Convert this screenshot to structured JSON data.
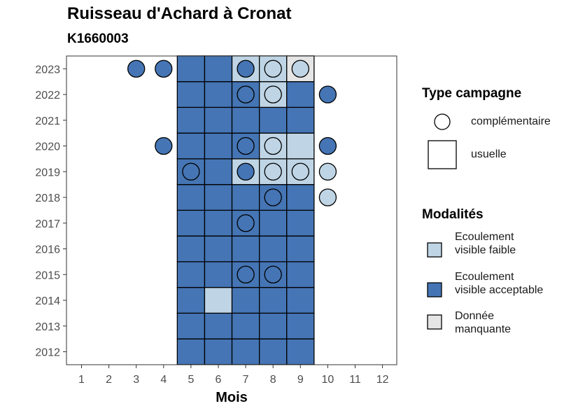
{
  "chart_data": {
    "type": "heatmap",
    "title": "Ruisseau d'Achard à Cronat",
    "subtitle": "K1660003",
    "xlabel": "Mois",
    "ylabel": "",
    "x_ticks": [
      "1",
      "2",
      "3",
      "4",
      "5",
      "6",
      "7",
      "8",
      "9",
      "10",
      "11",
      "12"
    ],
    "y_ticks": [
      "2012",
      "2013",
      "2014",
      "2015",
      "2016",
      "2017",
      "2018",
      "2019",
      "2020",
      "2021",
      "2022",
      "2023"
    ],
    "colors": {
      "faible": "#bfd5e5",
      "acceptable": "#4575b4",
      "manquante": "#e5e5e5"
    },
    "legend_type": {
      "title": "Type campagne",
      "items": [
        "complémentaire",
        "usuelle"
      ]
    },
    "legend_modalites": {
      "title": "Modalités",
      "items": [
        {
          "key": "faible",
          "label": "Ecoulement visible faible"
        },
        {
          "key": "acceptable",
          "label": "Ecoulement visible acceptable"
        },
        {
          "key": "manquante",
          "label": "Donnée manquante"
        }
      ]
    },
    "usuelle": [
      {
        "year": "2012",
        "month": 5,
        "m": "acceptable"
      },
      {
        "year": "2012",
        "month": 6,
        "m": "acceptable"
      },
      {
        "year": "2012",
        "month": 7,
        "m": "acceptable"
      },
      {
        "year": "2012",
        "month": 8,
        "m": "acceptable"
      },
      {
        "year": "2012",
        "month": 9,
        "m": "acceptable"
      },
      {
        "year": "2013",
        "month": 5,
        "m": "acceptable"
      },
      {
        "year": "2013",
        "month": 6,
        "m": "acceptable"
      },
      {
        "year": "2013",
        "month": 7,
        "m": "acceptable"
      },
      {
        "year": "2013",
        "month": 8,
        "m": "acceptable"
      },
      {
        "year": "2013",
        "month": 9,
        "m": "acceptable"
      },
      {
        "year": "2014",
        "month": 5,
        "m": "acceptable"
      },
      {
        "year": "2014",
        "month": 6,
        "m": "faible"
      },
      {
        "year": "2014",
        "month": 7,
        "m": "acceptable"
      },
      {
        "year": "2014",
        "month": 8,
        "m": "acceptable"
      },
      {
        "year": "2014",
        "month": 9,
        "m": "acceptable"
      },
      {
        "year": "2015",
        "month": 5,
        "m": "acceptable"
      },
      {
        "year": "2015",
        "month": 6,
        "m": "acceptable"
      },
      {
        "year": "2015",
        "month": 7,
        "m": "acceptable"
      },
      {
        "year": "2015",
        "month": 8,
        "m": "acceptable"
      },
      {
        "year": "2015",
        "month": 9,
        "m": "acceptable"
      },
      {
        "year": "2016",
        "month": 5,
        "m": "acceptable"
      },
      {
        "year": "2016",
        "month": 6,
        "m": "acceptable"
      },
      {
        "year": "2016",
        "month": 7,
        "m": "acceptable"
      },
      {
        "year": "2016",
        "month": 8,
        "m": "acceptable"
      },
      {
        "year": "2016",
        "month": 9,
        "m": "acceptable"
      },
      {
        "year": "2017",
        "month": 5,
        "m": "acceptable"
      },
      {
        "year": "2017",
        "month": 6,
        "m": "acceptable"
      },
      {
        "year": "2017",
        "month": 7,
        "m": "acceptable"
      },
      {
        "year": "2017",
        "month": 8,
        "m": "acceptable"
      },
      {
        "year": "2017",
        "month": 9,
        "m": "acceptable"
      },
      {
        "year": "2018",
        "month": 5,
        "m": "acceptable"
      },
      {
        "year": "2018",
        "month": 6,
        "m": "acceptable"
      },
      {
        "year": "2018",
        "month": 7,
        "m": "acceptable"
      },
      {
        "year": "2018",
        "month": 8,
        "m": "acceptable"
      },
      {
        "year": "2018",
        "month": 9,
        "m": "acceptable"
      },
      {
        "year": "2019",
        "month": 5,
        "m": "acceptable"
      },
      {
        "year": "2019",
        "month": 6,
        "m": "acceptable"
      },
      {
        "year": "2019",
        "month": 7,
        "m": "faible"
      },
      {
        "year": "2019",
        "month": 8,
        "m": "faible"
      },
      {
        "year": "2019",
        "month": 9,
        "m": "faible"
      },
      {
        "year": "2020",
        "month": 5,
        "m": "acceptable"
      },
      {
        "year": "2020",
        "month": 6,
        "m": "acceptable"
      },
      {
        "year": "2020",
        "month": 7,
        "m": "acceptable"
      },
      {
        "year": "2020",
        "month": 8,
        "m": "faible"
      },
      {
        "year": "2020",
        "month": 9,
        "m": "faible"
      },
      {
        "year": "2021",
        "month": 5,
        "m": "acceptable"
      },
      {
        "year": "2021",
        "month": 6,
        "m": "acceptable"
      },
      {
        "year": "2021",
        "month": 7,
        "m": "acceptable"
      },
      {
        "year": "2021",
        "month": 8,
        "m": "acceptable"
      },
      {
        "year": "2021",
        "month": 9,
        "m": "acceptable"
      },
      {
        "year": "2022",
        "month": 5,
        "m": "acceptable"
      },
      {
        "year": "2022",
        "month": 6,
        "m": "acceptable"
      },
      {
        "year": "2022",
        "month": 7,
        "m": "acceptable"
      },
      {
        "year": "2022",
        "month": 8,
        "m": "faible"
      },
      {
        "year": "2022",
        "month": 9,
        "m": "acceptable"
      },
      {
        "year": "2023",
        "month": 5,
        "m": "acceptable"
      },
      {
        "year": "2023",
        "month": 6,
        "m": "acceptable"
      },
      {
        "year": "2023",
        "month": 7,
        "m": "faible"
      },
      {
        "year": "2023",
        "month": 8,
        "m": "faible"
      },
      {
        "year": "2023",
        "month": 9,
        "m": "manquante"
      }
    ],
    "complementaire": [
      {
        "year": "2023",
        "month": 3,
        "m": "acceptable"
      },
      {
        "year": "2023",
        "month": 4,
        "m": "acceptable"
      },
      {
        "year": "2023",
        "month": 7,
        "m": "acceptable"
      },
      {
        "year": "2023",
        "month": 8,
        "m": "faible"
      },
      {
        "year": "2023",
        "month": 9,
        "m": "faible"
      },
      {
        "year": "2022",
        "month": 7,
        "m": "acceptable"
      },
      {
        "year": "2022",
        "month": 8,
        "m": "faible"
      },
      {
        "year": "2022",
        "month": 10,
        "m": "acceptable"
      },
      {
        "year": "2020",
        "month": 4,
        "m": "acceptable"
      },
      {
        "year": "2020",
        "month": 7,
        "m": "acceptable"
      },
      {
        "year": "2020",
        "month": 8,
        "m": "faible"
      },
      {
        "year": "2020",
        "month": 10,
        "m": "acceptable"
      },
      {
        "year": "2019",
        "month": 5,
        "m": "acceptable"
      },
      {
        "year": "2019",
        "month": 7,
        "m": "acceptable"
      },
      {
        "year": "2019",
        "month": 8,
        "m": "faible"
      },
      {
        "year": "2019",
        "month": 9,
        "m": "faible"
      },
      {
        "year": "2019",
        "month": 10,
        "m": "faible"
      },
      {
        "year": "2018",
        "month": 8,
        "m": "acceptable"
      },
      {
        "year": "2018",
        "month": 10,
        "m": "faible"
      },
      {
        "year": "2017",
        "month": 7,
        "m": "acceptable"
      },
      {
        "year": "2015",
        "month": 7,
        "m": "acceptable"
      },
      {
        "year": "2015",
        "month": 8,
        "m": "acceptable"
      }
    ]
  }
}
